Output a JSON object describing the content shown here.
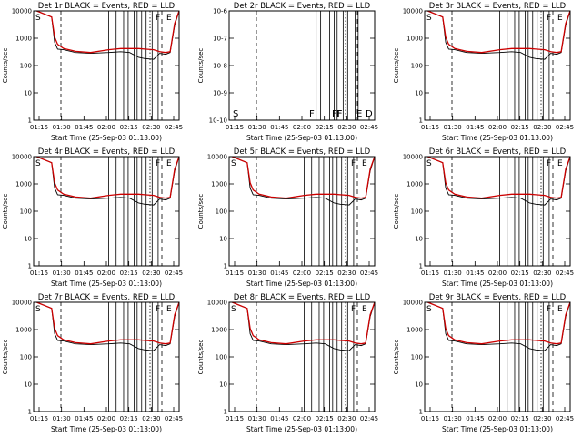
{
  "figure": {
    "time_ticks": [
      "01:15",
      "01:30",
      "01:45",
      "02:00",
      "02:15",
      "02:30",
      "02:45"
    ],
    "colors": {
      "events": "#000000",
      "lld": "#cc0000",
      "axes": "#000000"
    }
  },
  "chart_data": [
    {
      "type": "line",
      "panel": "det1",
      "title": "Det 1r BLACK = Events, RED = LLD",
      "xlabel": "Start Time (25-Sep-03 01:13:00)",
      "ylabel": "Counts/sec",
      "yscale": "log",
      "ylim": [
        1,
        10000
      ],
      "ytick_labels": [
        "1",
        "10",
        "100",
        "1000",
        "10000"
      ],
      "xlim_minutes": [
        0,
        97
      ],
      "x_minutes": [
        2,
        12,
        14,
        16,
        20,
        28,
        38,
        50,
        58,
        64,
        70,
        74,
        80,
        84,
        88,
        91,
        94,
        97
      ],
      "series": [
        {
          "name": "Events",
          "values": [
            10000,
            6000,
            700,
            400,
            380,
            300,
            280,
            300,
            320,
            300,
            200,
            180,
            170,
            280,
            260,
            300,
            3000,
            10000
          ]
        },
        {
          "name": "LLD",
          "values": [
            10000,
            6000,
            1100,
            600,
            420,
            330,
            300,
            380,
            420,
            420,
            420,
            400,
            380,
            320,
            300,
            320,
            3500,
            10000
          ]
        }
      ],
      "spikes_minutes": [
        50,
        55,
        60,
        63,
        67,
        69,
        72,
        75,
        79,
        83
      ],
      "annotations": [
        "S",
        "F",
        "E"
      ]
    },
    {
      "type": "line",
      "panel": "det2",
      "title": "Det 2r BLACK = Events, RED = LLD",
      "xlabel": "Start Time (25-Sep-03 01:13:00)",
      "ylabel": "Counts/sec",
      "yscale": "log",
      "ylim": [
        1e-10,
        1e-06
      ],
      "ytick_labels": [
        "10-10",
        "10-9",
        "10-8",
        "10-7",
        "10-6"
      ],
      "xlim_minutes": [
        0,
        97
      ],
      "x_minutes": [],
      "series": [],
      "spikes_minutes": [
        58,
        61,
        67,
        70,
        72,
        76,
        79,
        84,
        86
      ],
      "annotations": [
        "S",
        "F",
        "FF",
        "F",
        "E",
        "D"
      ]
    },
    {
      "type": "line",
      "panel": "det3",
      "title": "Det 3r BLACK = Events, RED = LLD",
      "xlabel": "Start Time (25-Sep-03 01:13:00)",
      "ylabel": "Counts/sec",
      "yscale": "log",
      "ylim": [
        1,
        10000
      ],
      "ytick_labels": [
        "1",
        "10",
        "100",
        "1000",
        "10000"
      ],
      "xlim_minutes": [
        0,
        97
      ],
      "x_minutes": [
        2,
        12,
        14,
        16,
        20,
        28,
        38,
        50,
        58,
        64,
        70,
        74,
        80,
        84,
        88,
        91,
        94,
        97
      ],
      "series": [
        {
          "name": "Events",
          "values": [
            10000,
            6000,
            700,
            400,
            380,
            300,
            280,
            300,
            320,
            300,
            200,
            180,
            170,
            280,
            260,
            300,
            3000,
            10000
          ]
        },
        {
          "name": "LLD",
          "values": [
            10000,
            6000,
            1100,
            600,
            420,
            330,
            300,
            380,
            420,
            420,
            420,
            400,
            380,
            320,
            300,
            320,
            3500,
            10000
          ]
        }
      ],
      "spikes_minutes": [
        50,
        55,
        60,
        63,
        67,
        69,
        72,
        75,
        79,
        83
      ],
      "annotations": [
        "S",
        "F",
        "E"
      ]
    },
    {
      "type": "line",
      "panel": "det4",
      "title": "Det 4r BLACK = Events, RED = LLD",
      "xlabel": "Start Time (25-Sep-03 01:13:00)",
      "ylabel": "Counts/sec",
      "yscale": "log",
      "ylim": [
        1,
        10000
      ],
      "ytick_labels": [
        "1",
        "10",
        "100",
        "1000",
        "10000"
      ],
      "xlim_minutes": [
        0,
        97
      ],
      "x_minutes": [
        2,
        12,
        14,
        16,
        20,
        28,
        38,
        50,
        58,
        64,
        70,
        74,
        80,
        84,
        88,
        91,
        94,
        97
      ],
      "series": [
        {
          "name": "Events",
          "values": [
            10000,
            6000,
            700,
            400,
            380,
            300,
            280,
            300,
            320,
            300,
            200,
            180,
            170,
            280,
            260,
            300,
            3000,
            10000
          ]
        },
        {
          "name": "LLD",
          "values": [
            10000,
            6000,
            1100,
            600,
            420,
            330,
            300,
            380,
            420,
            420,
            420,
            400,
            380,
            320,
            300,
            320,
            3500,
            10000
          ]
        }
      ],
      "spikes_minutes": [
        50,
        55,
        60,
        63,
        67,
        69,
        72,
        75,
        79,
        83
      ],
      "annotations": [
        "S",
        "F",
        "E"
      ]
    },
    {
      "type": "line",
      "panel": "det5",
      "title": "Det 5r BLACK = Events, RED = LLD",
      "xlabel": "Start Time (25-Sep-03 01:13:00)",
      "ylabel": "Counts/sec",
      "yscale": "log",
      "ylim": [
        1,
        10000
      ],
      "ytick_labels": [
        "1",
        "10",
        "100",
        "1000",
        "10000"
      ],
      "xlim_minutes": [
        0,
        97
      ],
      "x_minutes": [
        2,
        12,
        14,
        16,
        20,
        28,
        38,
        50,
        58,
        64,
        70,
        74,
        80,
        84,
        88,
        91,
        94,
        97
      ],
      "series": [
        {
          "name": "Events",
          "values": [
            10000,
            6000,
            700,
            400,
            380,
            300,
            280,
            300,
            320,
            300,
            200,
            180,
            170,
            280,
            260,
            300,
            3000,
            10000
          ]
        },
        {
          "name": "LLD",
          "values": [
            10000,
            6000,
            1100,
            600,
            420,
            330,
            300,
            380,
            420,
            420,
            420,
            400,
            380,
            320,
            300,
            320,
            3500,
            10000
          ]
        }
      ],
      "spikes_minutes": [
        50,
        55,
        60,
        63,
        67,
        69,
        72,
        75,
        79,
        83
      ],
      "annotations": [
        "S",
        "F",
        "E"
      ]
    },
    {
      "type": "line",
      "panel": "det6",
      "title": "Det 6r BLACK = Events, RED = LLD",
      "xlabel": "Start Time (25-Sep-03 01:13:00)",
      "ylabel": "Counts/sec",
      "yscale": "log",
      "ylim": [
        1,
        10000
      ],
      "ytick_labels": [
        "1",
        "10",
        "100",
        "1000",
        "10000"
      ],
      "xlim_minutes": [
        0,
        97
      ],
      "x_minutes": [
        2,
        12,
        14,
        16,
        20,
        28,
        38,
        50,
        58,
        64,
        70,
        74,
        80,
        84,
        88,
        91,
        94,
        97
      ],
      "series": [
        {
          "name": "Events",
          "values": [
            10000,
            6000,
            700,
            400,
            380,
            300,
            280,
            300,
            320,
            300,
            200,
            180,
            170,
            280,
            260,
            300,
            3000,
            10000
          ]
        },
        {
          "name": "LLD",
          "values": [
            10000,
            6000,
            1100,
            600,
            420,
            330,
            300,
            380,
            420,
            420,
            420,
            400,
            380,
            320,
            300,
            320,
            3500,
            10000
          ]
        }
      ],
      "spikes_minutes": [
        50,
        55,
        60,
        63,
        67,
        69,
        72,
        75,
        79,
        83
      ],
      "annotations": [
        "S",
        "F",
        "E"
      ]
    },
    {
      "type": "line",
      "panel": "det7",
      "title": "Det 7r BLACK = Events, RED = LLD",
      "xlabel": "Start Time (25-Sep-03 01:13:00)",
      "ylabel": "Counts/sec",
      "yscale": "log",
      "ylim": [
        1,
        10000
      ],
      "ytick_labels": [
        "1",
        "10",
        "100",
        "1000",
        "10000"
      ],
      "xlim_minutes": [
        0,
        97
      ],
      "x_minutes": [
        2,
        12,
        14,
        16,
        20,
        28,
        38,
        50,
        58,
        64,
        70,
        74,
        80,
        84,
        88,
        91,
        94,
        97
      ],
      "series": [
        {
          "name": "Events",
          "values": [
            10000,
            6000,
            700,
            400,
            380,
            300,
            280,
            300,
            320,
            300,
            200,
            180,
            170,
            280,
            260,
            300,
            3000,
            10000
          ]
        },
        {
          "name": "LLD",
          "values": [
            10000,
            6000,
            1100,
            600,
            420,
            330,
            300,
            380,
            420,
            420,
            420,
            400,
            380,
            320,
            300,
            320,
            3500,
            10000
          ]
        }
      ],
      "spikes_minutes": [
        50,
        55,
        60,
        63,
        67,
        69,
        72,
        75,
        79,
        83
      ],
      "annotations": [
        "S",
        "F",
        "E"
      ]
    },
    {
      "type": "line",
      "panel": "det8",
      "title": "Det 8r BLACK = Events, RED = LLD",
      "xlabel": "Start Time (25-Sep-03 01:13:00)",
      "ylabel": "Counts/sec",
      "yscale": "log",
      "ylim": [
        1,
        10000
      ],
      "ytick_labels": [
        "1",
        "10",
        "100",
        "1000",
        "10000"
      ],
      "xlim_minutes": [
        0,
        97
      ],
      "x_minutes": [
        2,
        12,
        14,
        16,
        20,
        28,
        38,
        50,
        58,
        64,
        70,
        74,
        80,
        84,
        88,
        91,
        94,
        97
      ],
      "series": [
        {
          "name": "Events",
          "values": [
            10000,
            6000,
            700,
            400,
            380,
            300,
            280,
            300,
            320,
            300,
            200,
            180,
            170,
            280,
            260,
            300,
            3000,
            10000
          ]
        },
        {
          "name": "LLD",
          "values": [
            10000,
            6000,
            1100,
            600,
            420,
            330,
            300,
            380,
            420,
            420,
            420,
            400,
            380,
            320,
            300,
            320,
            3500,
            10000
          ]
        }
      ],
      "spikes_minutes": [
        50,
        55,
        60,
        63,
        67,
        69,
        72,
        75,
        79,
        83
      ],
      "annotations": [
        "S",
        "F",
        "E"
      ]
    },
    {
      "type": "line",
      "panel": "det9",
      "title": "Det 9r BLACK = Events, RED = LLD",
      "xlabel": "Start Time (25-Sep-03 01:13:00)",
      "ylabel": "Counts/sec",
      "yscale": "log",
      "ylim": [
        1,
        10000
      ],
      "ytick_labels": [
        "1",
        "10",
        "100",
        "1000",
        "10000"
      ],
      "xlim_minutes": [
        0,
        97
      ],
      "x_minutes": [
        2,
        12,
        14,
        16,
        20,
        28,
        38,
        50,
        58,
        64,
        70,
        74,
        80,
        84,
        88,
        91,
        94,
        97
      ],
      "series": [
        {
          "name": "Events",
          "values": [
            10000,
            6000,
            700,
            400,
            380,
            300,
            280,
            300,
            320,
            300,
            200,
            180,
            170,
            280,
            260,
            300,
            3000,
            10000
          ]
        },
        {
          "name": "LLD",
          "values": [
            10000,
            6000,
            1100,
            600,
            420,
            330,
            300,
            380,
            420,
            420,
            420,
            400,
            380,
            320,
            300,
            320,
            3500,
            10000
          ]
        }
      ],
      "spikes_minutes": [
        50,
        55,
        60,
        63,
        67,
        69,
        72,
        75,
        79,
        83
      ],
      "annotations": [
        "S",
        "F",
        "E"
      ]
    }
  ]
}
